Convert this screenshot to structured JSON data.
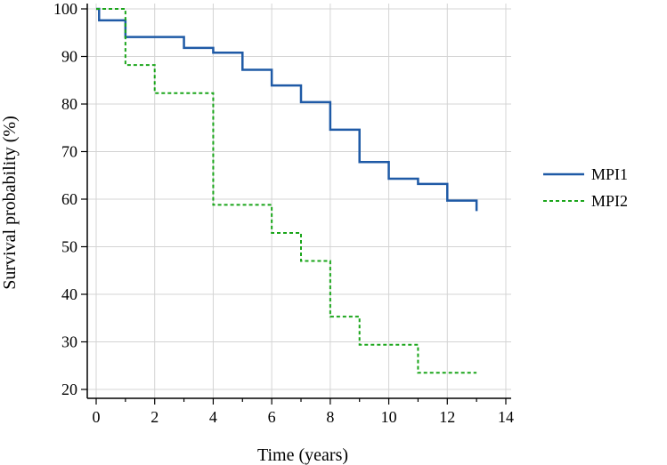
{
  "colors": {
    "MPI1": "#1f5aa6",
    "MPI2": "#1aa51a",
    "grid": "#d4d4d4",
    "axis": "#000000"
  },
  "chart_data": {
    "type": "line",
    "step": true,
    "title": "",
    "xlabel": "Time (years)",
    "ylabel": "Survival probability (%)",
    "xlim": [
      0,
      14
    ],
    "ylim": [
      20,
      100
    ],
    "xticks": [
      0,
      2,
      4,
      6,
      8,
      10,
      12,
      14
    ],
    "yticks": [
      20,
      30,
      40,
      50,
      60,
      70,
      80,
      90,
      100
    ],
    "grid": true,
    "legend": "right",
    "series": [
      {
        "name": "MPI1",
        "style": "solid",
        "color_key": "MPI1",
        "x": [
          0,
          0.1,
          1,
          3,
          4,
          5,
          6,
          7,
          8,
          9,
          10,
          11,
          12,
          13
        ],
        "y": [
          100,
          97.6,
          94.1,
          91.8,
          90.8,
          87.2,
          83.9,
          80.4,
          74.6,
          67.8,
          64.3,
          63.2,
          59.7,
          57.5
        ],
        "end_x": 13
      },
      {
        "name": "MPI2",
        "style": "dashed",
        "color_key": "MPI2",
        "x": [
          0,
          1,
          2,
          4,
          6,
          7,
          8,
          9,
          11
        ],
        "y": [
          100,
          88.2,
          82.3,
          58.8,
          52.9,
          47.0,
          35.3,
          29.4,
          23.5
        ],
        "end_x": 13
      }
    ]
  }
}
